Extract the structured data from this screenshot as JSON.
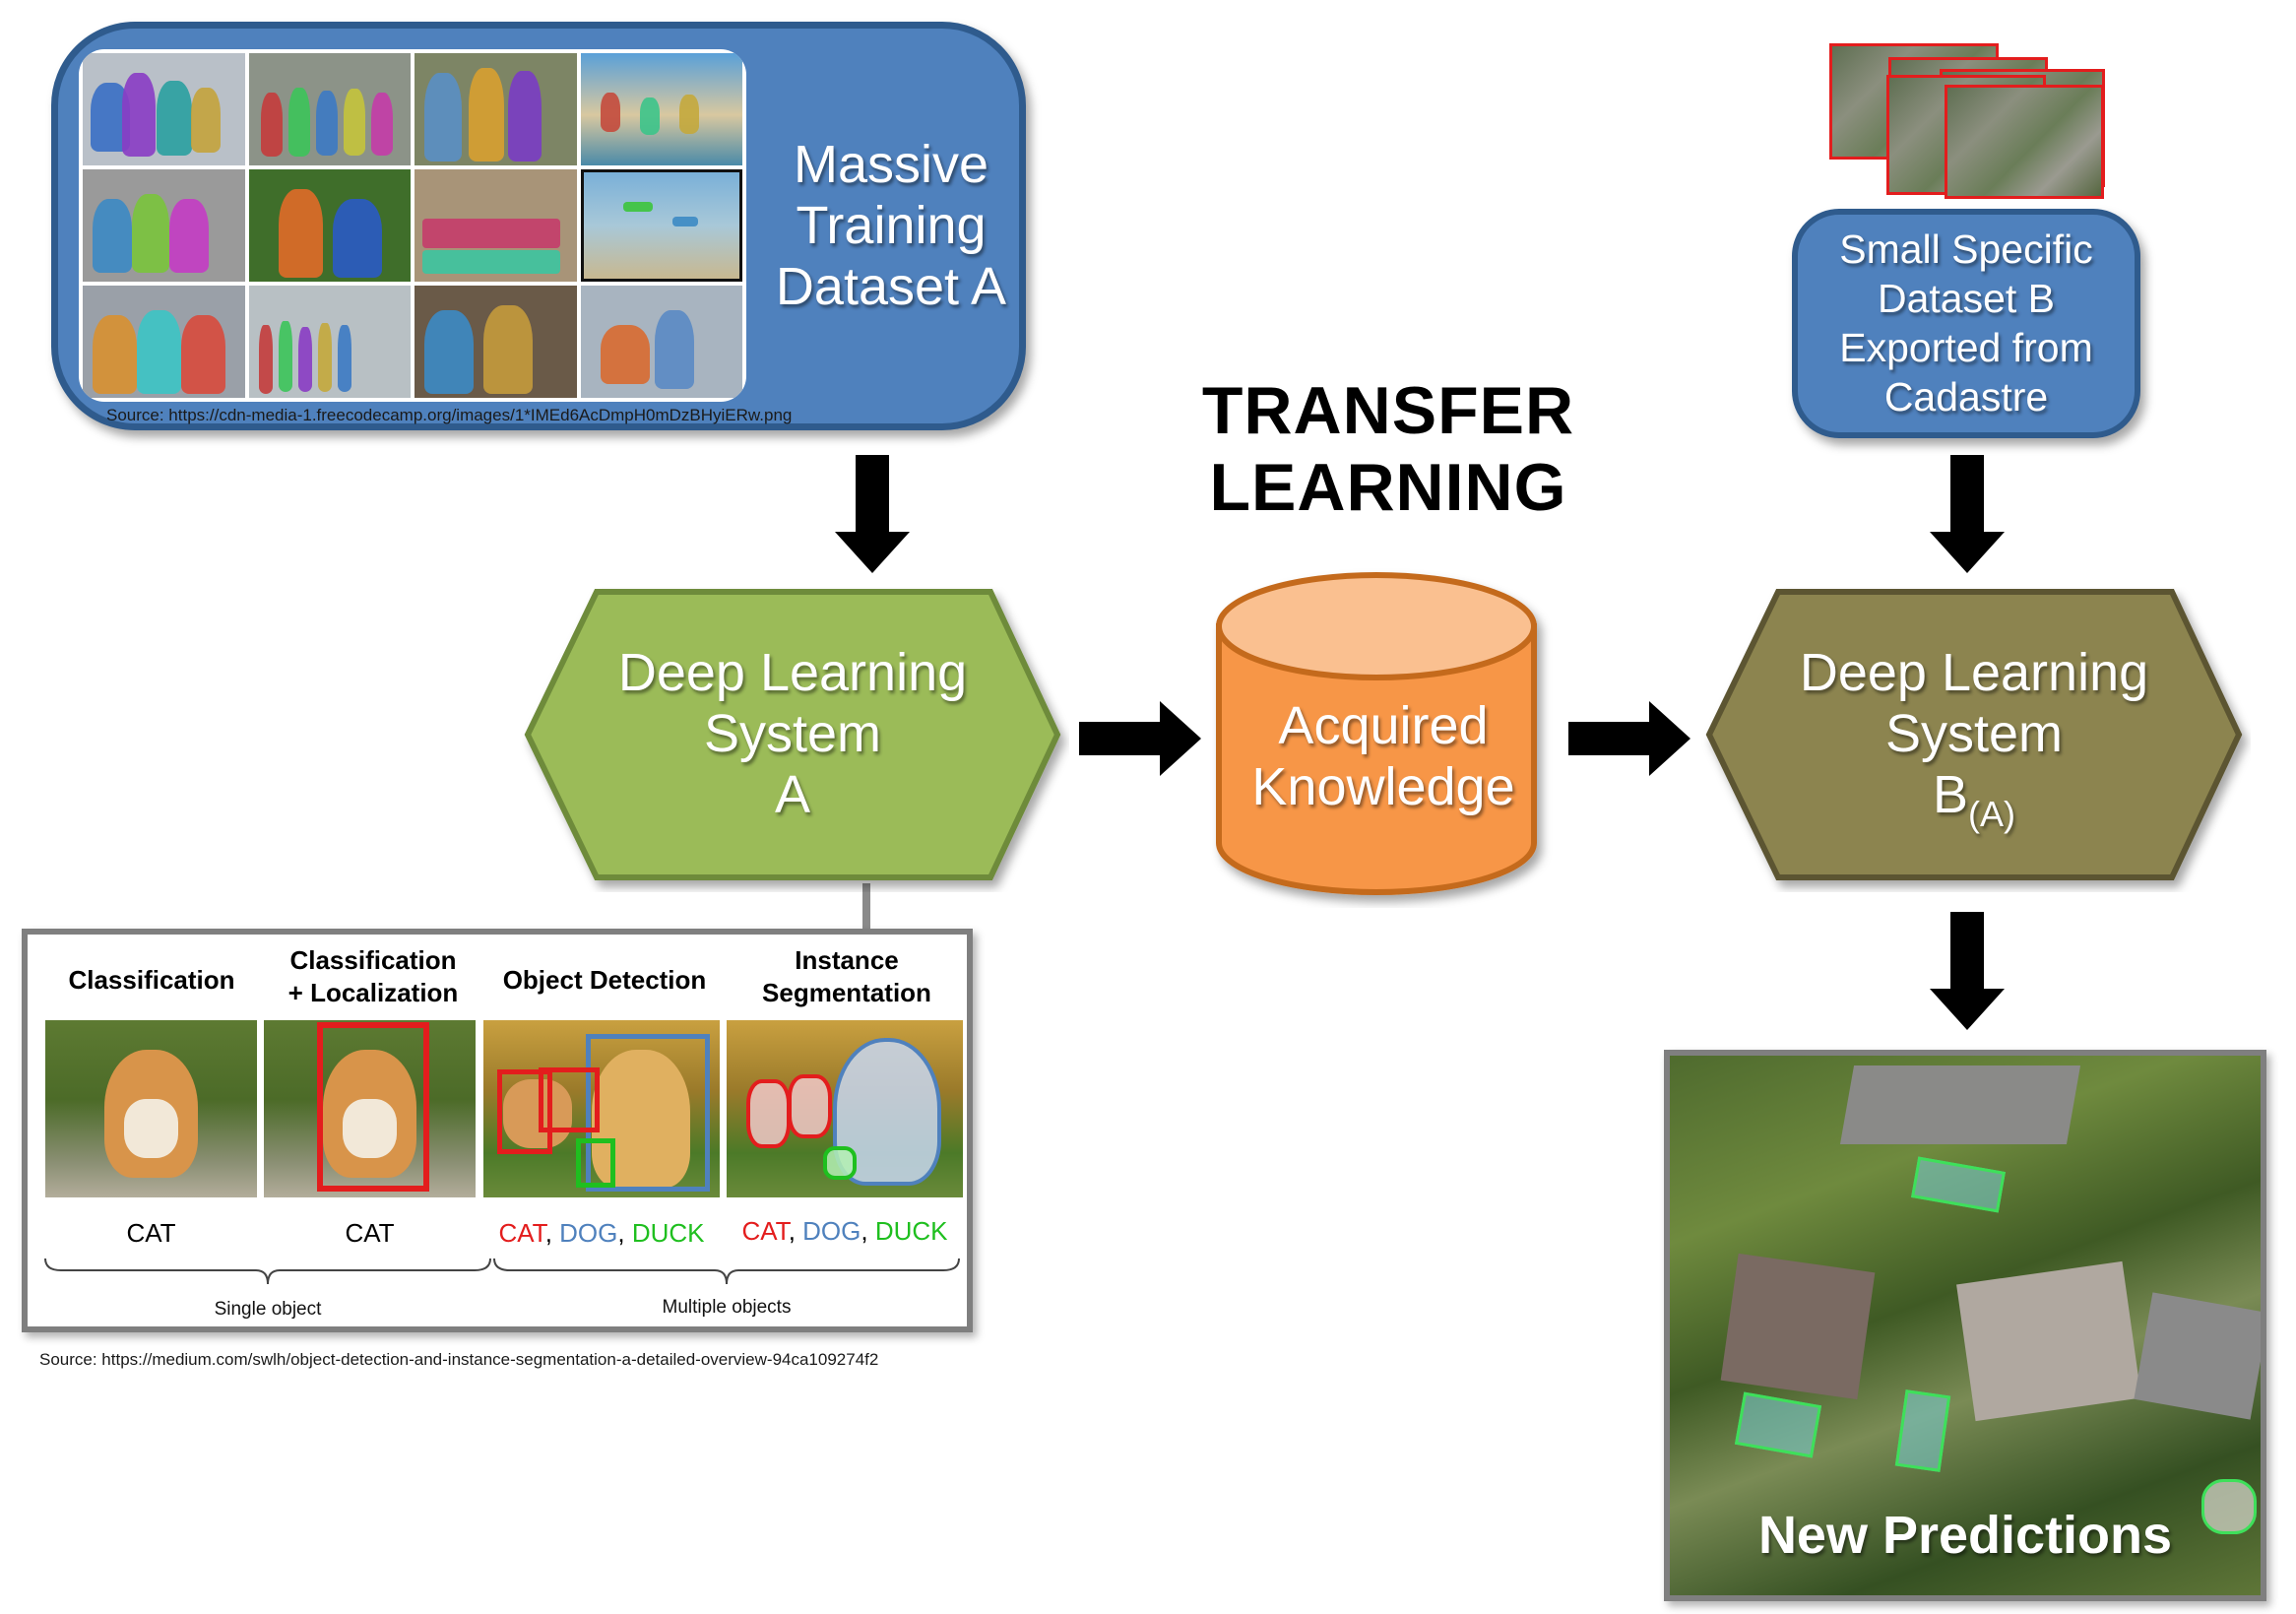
{
  "dataset_a": {
    "title_line1": "Massive",
    "title_line2": "Training",
    "title_line3": "Dataset A",
    "source": "Source: https://cdn-media-1.freecodecamp.org/images/1*IMEd6AcDmpH0mDzBHyiERw.png"
  },
  "dataset_b": {
    "title_line1": "Small Specific",
    "title_line2": "Dataset B",
    "title_line3": "Exported from",
    "title_line4": "Cadastre"
  },
  "transfer": {
    "line1": "TRANSFER",
    "line2": "LEARNING"
  },
  "system_a": {
    "line1": "Deep Learning",
    "line2": "System",
    "line3": "A"
  },
  "knowledge": {
    "line1": "Acquired",
    "line2": "Knowledge"
  },
  "system_b": {
    "line1": "Deep Learning",
    "line2": "System",
    "line3_main": "B",
    "line3_sub": "(A)"
  },
  "tasks": {
    "classification": {
      "head": "Classification",
      "label": "CAT"
    },
    "localization": {
      "head_line1": "Classification",
      "head_line2": "+ Localization",
      "label": "CAT"
    },
    "detection": {
      "head": "Object Detection",
      "labels": [
        "CAT",
        "DOG",
        "DUCK"
      ]
    },
    "segmentation": {
      "head_line1": "Instance",
      "head_line2": "Segmentation",
      "labels": [
        "CAT",
        "DOG",
        "DUCK"
      ]
    },
    "separator": ", ",
    "single": "Single object",
    "multiple": "Multiple objects",
    "source": "Source: https://medium.com/swlh/object-detection-and-instance-segmentation-a-detailed-overview-94ca109274f2"
  },
  "predictions": {
    "title": "New Predictions"
  },
  "colors": {
    "blue_box": "#4f81bd",
    "green_hex": "#9bbb59",
    "olive_hex": "#8c8450",
    "orange_cylinder": "#f79646",
    "label_red": "#e31d1d",
    "label_blue": "#4f81bd",
    "label_green": "#1fbf1f"
  }
}
